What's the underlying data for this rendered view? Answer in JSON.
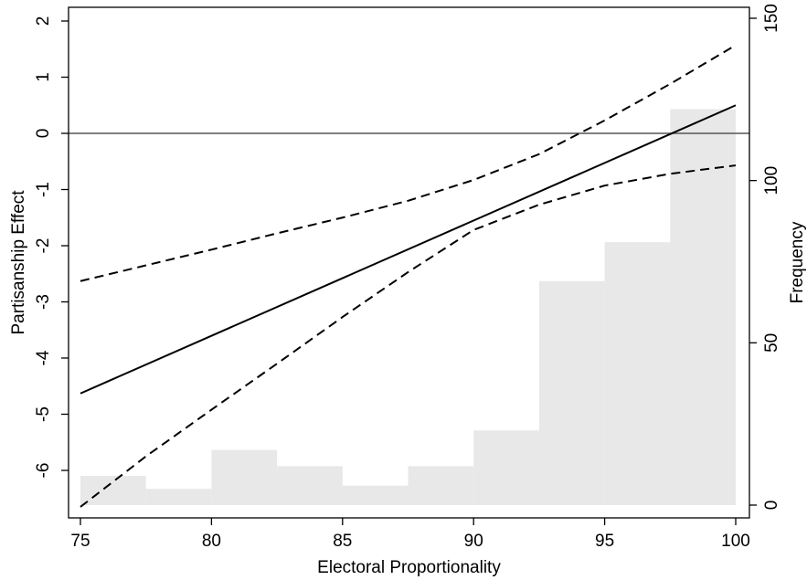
{
  "chart_data": {
    "type": "line",
    "xlabel": "Electoral Proportionality",
    "ylabel": "Partisanship Effect",
    "y2label": "Frequency",
    "xlim": [
      75,
      100
    ],
    "ylim": [
      -6.7,
      2.2
    ],
    "y2lim": [
      0,
      150
    ],
    "xticks": [
      "75",
      "80",
      "85",
      "90",
      "95",
      "100"
    ],
    "yticks": [
      "-6",
      "-5",
      "-4",
      "-3",
      "-2",
      "-1",
      "0",
      "1",
      "2"
    ],
    "y2ticks": [
      "0",
      "50",
      "100",
      "150"
    ],
    "reference_line_y": 0,
    "series": [
      {
        "style": "solid",
        "x": [
          75,
          100
        ],
        "y": [
          -4.63,
          0.5
        ]
      },
      {
        "style": "dashed",
        "x": [
          75,
          77.5,
          80,
          82.5,
          85,
          87.5,
          90,
          92.5,
          95,
          97.5,
          100
        ],
        "y": [
          -2.63,
          -2.35,
          -2.07,
          -1.78,
          -1.5,
          -1.2,
          -0.83,
          -0.37,
          0.23,
          0.88,
          1.57
        ]
      },
      {
        "style": "dashed",
        "x": [
          75,
          77.5,
          80,
          82.5,
          85,
          87.5,
          90,
          92.5,
          95,
          97.5,
          100
        ],
        "y": [
          -6.65,
          -5.75,
          -4.92,
          -4.1,
          -3.27,
          -2.47,
          -1.72,
          -1.27,
          -0.93,
          -0.72,
          -0.57
        ]
      }
    ],
    "histogram": {
      "axis": "y2",
      "bin_start": [
        75,
        77.5,
        80,
        82.5,
        85,
        87.5,
        90,
        92.5,
        95,
        97.5
      ],
      "bin_width": 2.5,
      "counts": [
        9,
        5,
        17,
        12,
        6,
        12,
        23,
        69,
        81,
        122
      ],
      "color": "#e8e8e8"
    },
    "line_color": "#000000",
    "reference_line_color": "#555555",
    "grid": false
  }
}
